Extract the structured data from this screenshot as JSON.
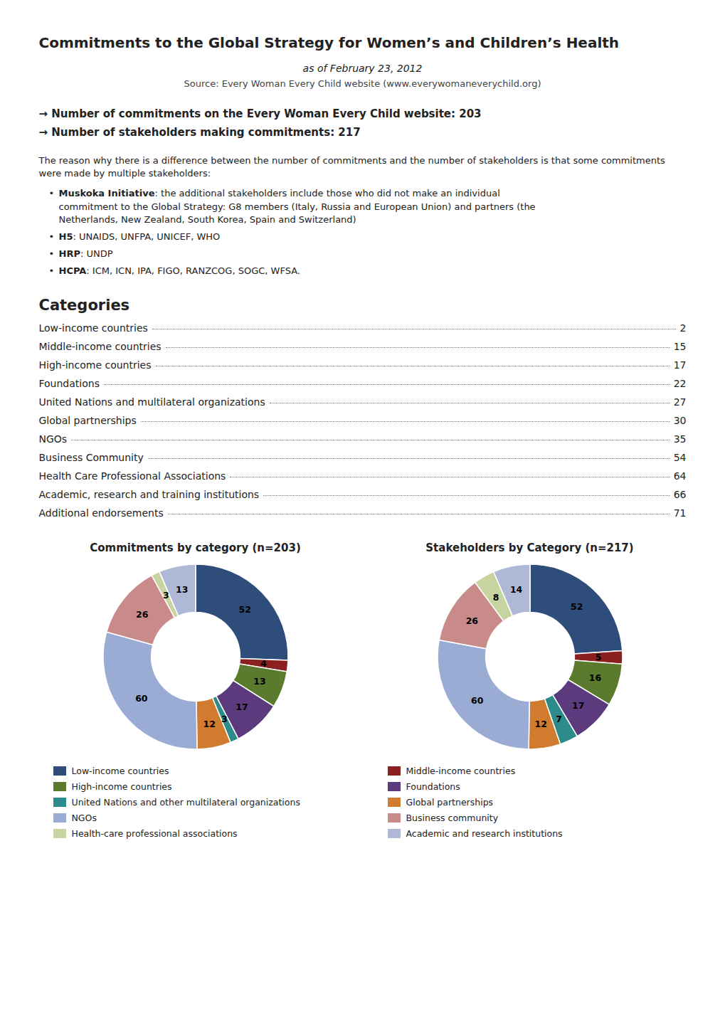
{
  "page": {
    "title": "Commitments to the Global Strategy for Women’s and Children’s Health",
    "subtitle": "as of February 23, 2012",
    "source": "Source: Every Woman Every Child website (www.everywomaneverychild.org)",
    "bullet1": "→ Number of commitments on the Every Woman Every Child website: 203",
    "bullet2": "→ Number of stakeholders making commitments: 217",
    "body_text1": "The reason why there is a difference between the number of commitments and the number of stakeholders is that some commitments were made by multiple stakeholders:",
    "bullet_items": [
      [
        "• ",
        "Muskoka Initiative",
        ": the additional stakeholders include those who did not make an individual\ncommitment to the Global Strategy: G8 members (Italy, Russia and European Union) and partners (the\nNetherlands, New Zealand, South Korea, Spain and Switzerland)"
      ],
      [
        "• ",
        "H5",
        ": UNAIDS, UNFPA, UNICEF, WHO"
      ],
      [
        "• ",
        "HRP",
        ": UNDP"
      ],
      [
        "• ",
        "HCPA",
        ": ICM, ICN, IPA, FIGO, RANZCOG, SOGC, WFSA."
      ]
    ],
    "categories_title": "Categories",
    "categories": [
      [
        "Low-income countries",
        "2"
      ],
      [
        "Middle-income countries",
        "15"
      ],
      [
        "High-income countries",
        "17"
      ],
      [
        "Foundations",
        "22"
      ],
      [
        "United Nations and multilateral organizations",
        "27"
      ],
      [
        "Global partnerships",
        "30"
      ],
      [
        "NGOs",
        "35"
      ],
      [
        "Business Community",
        "54"
      ],
      [
        "Health Care Professional Associations",
        "64"
      ],
      [
        "Academic, research and training institutions",
        "66"
      ],
      [
        "Additional endorsements",
        "71"
      ]
    ]
  },
  "chart_data": [
    {
      "type": "pie",
      "title": "Commitments by category (n=203)",
      "categories": [
        "Low-income countries",
        "Middle-income countries",
        "High-income countries",
        "Foundations",
        "United Nations and other multilateral organizations",
        "Global partnerships",
        "NGOs",
        "Business community",
        "Health-care professional associations",
        "Academic and research institutions"
      ],
      "values": [
        52,
        4,
        13,
        17,
        3,
        12,
        60,
        26,
        3,
        13
      ],
      "colors": [
        "#2e4d7b",
        "#8b2020",
        "#5a7a2e",
        "#5b3a7e",
        "#2e8b8b",
        "#d07b2e",
        "#9bacd4",
        "#c98a8a",
        "#c8d4a0",
        "#b0b8d8"
      ],
      "data_labels": true,
      "legend": "bottom"
    },
    {
      "type": "pie",
      "title": "Stakeholders by Category (n=217)",
      "categories": [
        "Low-income countries",
        "Middle-income countries",
        "High-income countries",
        "Foundations",
        "United Nations and other multilateral organizations",
        "Global partnerships",
        "NGOs",
        "Business community",
        "Health-care professional associations",
        "Academic and research institutions"
      ],
      "values": [
        52,
        5,
        16,
        17,
        7,
        12,
        60,
        26,
        8,
        14
      ],
      "colors": [
        "#2e4d7b",
        "#8b2020",
        "#5a7a2e",
        "#5b3a7e",
        "#2e8b8b",
        "#d07b2e",
        "#9bacd4",
        "#c98a8a",
        "#c8d4a0",
        "#b0b8d8"
      ],
      "data_labels": true,
      "legend": "bottom"
    }
  ]
}
